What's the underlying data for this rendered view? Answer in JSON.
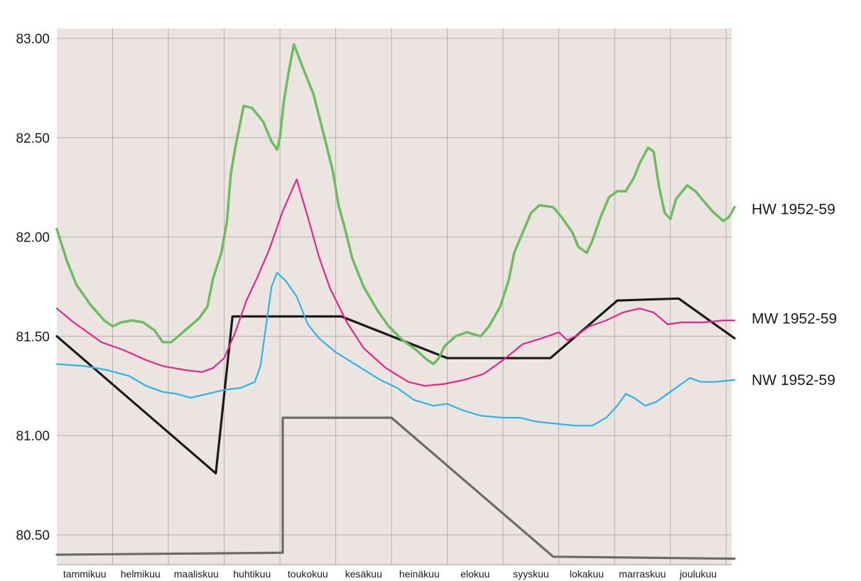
{
  "chart_data": {
    "type": "line",
    "ylim": [
      80.35,
      83.05
    ],
    "yticks": [
      "80.50",
      "81.00",
      "81.50",
      "82.00",
      "82.50",
      "83.00"
    ],
    "ytick_values": [
      80.5,
      81.0,
      81.5,
      82.0,
      82.5,
      83.0
    ],
    "xlim": [
      0,
      12
    ],
    "months": [
      "tammikuu",
      "helmikuu",
      "maaliskuu",
      "huhtikuu",
      "toukokuu",
      "kesäkuu",
      "heinäkuu",
      "elokuu",
      "syyskuu",
      "lokakuu",
      "marraskuu",
      "joulukuu"
    ],
    "grid": true,
    "background": "#ece4e1",
    "series": [
      {
        "name": "HW 1952-59",
        "color": "#6cbd5f",
        "width": 3.5,
        "labeled": true,
        "points": [
          [
            0,
            82.04
          ],
          [
            0.18,
            81.88
          ],
          [
            0.35,
            81.76
          ],
          [
            0.6,
            81.66
          ],
          [
            0.85,
            81.58
          ],
          [
            1.0,
            81.55
          ],
          [
            1.15,
            81.57
          ],
          [
            1.35,
            81.58
          ],
          [
            1.55,
            81.57
          ],
          [
            1.75,
            81.53
          ],
          [
            1.9,
            81.47
          ],
          [
            2.05,
            81.47
          ],
          [
            2.3,
            81.53
          ],
          [
            2.55,
            81.59
          ],
          [
            2.7,
            81.65
          ],
          [
            2.8,
            81.79
          ],
          [
            2.95,
            81.92
          ],
          [
            3.05,
            82.08
          ],
          [
            3.12,
            82.32
          ],
          [
            3.2,
            82.45
          ],
          [
            3.35,
            82.66
          ],
          [
            3.5,
            82.65
          ],
          [
            3.7,
            82.58
          ],
          [
            3.85,
            82.48
          ],
          [
            3.95,
            82.44
          ],
          [
            4.0,
            82.5
          ],
          [
            4.07,
            82.68
          ],
          [
            4.15,
            82.82
          ],
          [
            4.25,
            82.97
          ],
          [
            4.4,
            82.86
          ],
          [
            4.6,
            82.72
          ],
          [
            4.8,
            82.5
          ],
          [
            4.95,
            82.33
          ],
          [
            5.05,
            82.16
          ],
          [
            5.15,
            82.06
          ],
          [
            5.3,
            81.89
          ],
          [
            5.5,
            81.75
          ],
          [
            5.75,
            81.63
          ],
          [
            5.95,
            81.55
          ],
          [
            6.2,
            81.48
          ],
          [
            6.45,
            81.43
          ],
          [
            6.6,
            81.39
          ],
          [
            6.75,
            81.36
          ],
          [
            6.85,
            81.39
          ],
          [
            6.95,
            81.45
          ],
          [
            7.15,
            81.5
          ],
          [
            7.35,
            81.52
          ],
          [
            7.6,
            81.5
          ],
          [
            7.75,
            81.55
          ],
          [
            7.95,
            81.65
          ],
          [
            8.1,
            81.78
          ],
          [
            8.2,
            81.92
          ],
          [
            8.35,
            82.02
          ],
          [
            8.5,
            82.12
          ],
          [
            8.65,
            82.16
          ],
          [
            8.9,
            82.15
          ],
          [
            9.05,
            82.1
          ],
          [
            9.25,
            82.02
          ],
          [
            9.35,
            81.95
          ],
          [
            9.5,
            81.92
          ],
          [
            9.6,
            81.98
          ],
          [
            9.75,
            82.1
          ],
          [
            9.9,
            82.2
          ],
          [
            10.05,
            82.23
          ],
          [
            10.2,
            82.23
          ],
          [
            10.35,
            82.3
          ],
          [
            10.45,
            82.37
          ],
          [
            10.6,
            82.45
          ],
          [
            10.7,
            82.43
          ],
          [
            10.8,
            82.25
          ],
          [
            10.9,
            82.12
          ],
          [
            11.0,
            82.09
          ],
          [
            11.1,
            82.19
          ],
          [
            11.3,
            82.26
          ],
          [
            11.45,
            82.23
          ],
          [
            11.6,
            82.18
          ],
          [
            11.75,
            82.13
          ],
          [
            11.95,
            82.08
          ],
          [
            12.05,
            82.1
          ],
          [
            12.15,
            82.15
          ]
        ]
      },
      {
        "name": "MW 1952-59",
        "color": "#e3268a",
        "width": 2.2,
        "labeled": true,
        "points": [
          [
            0,
            81.64
          ],
          [
            0.3,
            81.57
          ],
          [
            0.6,
            81.51
          ],
          [
            0.8,
            81.47
          ],
          [
            1.2,
            81.43
          ],
          [
            1.6,
            81.38
          ],
          [
            1.9,
            81.35
          ],
          [
            2.3,
            81.33
          ],
          [
            2.6,
            81.32
          ],
          [
            2.8,
            81.34
          ],
          [
            3.0,
            81.39
          ],
          [
            3.2,
            81.52
          ],
          [
            3.4,
            81.68
          ],
          [
            3.6,
            81.8
          ],
          [
            3.8,
            81.93
          ],
          [
            4.05,
            82.13
          ],
          [
            4.3,
            82.29
          ],
          [
            4.5,
            82.1
          ],
          [
            4.7,
            81.9
          ],
          [
            4.9,
            81.74
          ],
          [
            5.2,
            81.57
          ],
          [
            5.5,
            81.44
          ],
          [
            5.9,
            81.34
          ],
          [
            6.3,
            81.27
          ],
          [
            6.6,
            81.25
          ],
          [
            6.95,
            81.26
          ],
          [
            7.3,
            81.28
          ],
          [
            7.65,
            81.31
          ],
          [
            8.0,
            81.38
          ],
          [
            8.35,
            81.46
          ],
          [
            8.7,
            81.49
          ],
          [
            9.0,
            81.52
          ],
          [
            9.15,
            81.48
          ],
          [
            9.3,
            81.5
          ],
          [
            9.55,
            81.55
          ],
          [
            9.85,
            81.58
          ],
          [
            10.15,
            81.62
          ],
          [
            10.45,
            81.64
          ],
          [
            10.7,
            81.62
          ],
          [
            10.95,
            81.56
          ],
          [
            11.2,
            81.57
          ],
          [
            11.6,
            81.57
          ],
          [
            11.95,
            81.58
          ],
          [
            12.15,
            81.58
          ]
        ]
      },
      {
        "name": "NW 1952-59",
        "color": "#2cb4e6",
        "width": 2.2,
        "labeled": true,
        "points": [
          [
            0,
            81.36
          ],
          [
            0.5,
            81.35
          ],
          [
            0.9,
            81.33
          ],
          [
            1.3,
            81.3
          ],
          [
            1.6,
            81.25
          ],
          [
            1.9,
            81.22
          ],
          [
            2.15,
            81.21
          ],
          [
            2.4,
            81.19
          ],
          [
            2.7,
            81.21
          ],
          [
            3.0,
            81.23
          ],
          [
            3.3,
            81.24
          ],
          [
            3.55,
            81.27
          ],
          [
            3.65,
            81.35
          ],
          [
            3.75,
            81.55
          ],
          [
            3.85,
            81.75
          ],
          [
            3.95,
            81.82
          ],
          [
            4.1,
            81.78
          ],
          [
            4.3,
            81.7
          ],
          [
            4.5,
            81.56
          ],
          [
            4.7,
            81.49
          ],
          [
            5.0,
            81.42
          ],
          [
            5.4,
            81.35
          ],
          [
            5.8,
            81.28
          ],
          [
            6.1,
            81.24
          ],
          [
            6.4,
            81.18
          ],
          [
            6.75,
            81.15
          ],
          [
            7.0,
            81.16
          ],
          [
            7.25,
            81.13
          ],
          [
            7.6,
            81.1
          ],
          [
            8.0,
            81.09
          ],
          [
            8.3,
            81.09
          ],
          [
            8.6,
            81.07
          ],
          [
            8.95,
            81.06
          ],
          [
            9.3,
            81.05
          ],
          [
            9.6,
            81.05
          ],
          [
            9.85,
            81.09
          ],
          [
            10.05,
            81.15
          ],
          [
            10.2,
            81.21
          ],
          [
            10.35,
            81.19
          ],
          [
            10.55,
            81.15
          ],
          [
            10.75,
            81.17
          ],
          [
            11.0,
            81.22
          ],
          [
            11.2,
            81.26
          ],
          [
            11.35,
            81.29
          ],
          [
            11.55,
            81.27
          ],
          [
            11.8,
            81.27
          ],
          [
            12.15,
            81.28
          ]
        ]
      },
      {
        "name": "",
        "color": "#1a1a1a",
        "width": 3.2,
        "labeled": false,
        "points": [
          [
            0,
            81.5
          ],
          [
            2.85,
            80.81
          ],
          [
            3.15,
            81.6
          ],
          [
            5.1,
            81.6
          ],
          [
            7.0,
            81.39
          ],
          [
            8.85,
            81.39
          ],
          [
            10.05,
            81.68
          ],
          [
            11.15,
            81.69
          ],
          [
            12.15,
            81.49
          ]
        ]
      },
      {
        "name": "",
        "color": "#6b6b6b",
        "width": 3.2,
        "labeled": false,
        "points": [
          [
            0,
            80.4
          ],
          [
            4.05,
            80.41
          ],
          [
            4.05,
            81.09
          ],
          [
            6.0,
            81.09
          ],
          [
            8.9,
            80.39
          ],
          [
            12.15,
            80.38
          ]
        ]
      }
    ]
  }
}
